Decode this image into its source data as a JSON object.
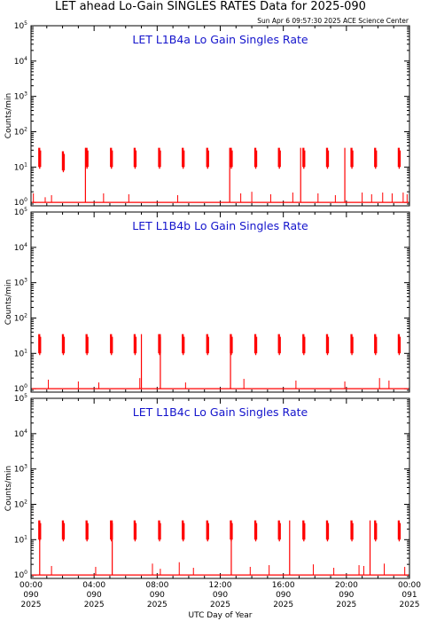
{
  "header": {
    "title": "LET ahead Lo-Gain SINGLES RATES Data for 2025-090",
    "timestamp": "Sun Apr  6 09:57:30 2025 ACE Science Center"
  },
  "chart_data": [
    {
      "type": "line",
      "title": "LET L1B4a Lo Gain Singles Rate",
      "ylabel": "Counts/min",
      "yscale": "log",
      "ylim": [
        0.8,
        100000
      ],
      "xlim": [
        0,
        24
      ],
      "line_color": "#ff0000",
      "spikes": [
        {
          "x": 0.55,
          "peak": 35
        },
        {
          "x": 2.05,
          "peak": 28
        },
        {
          "x": 3.55,
          "peak": 35
        },
        {
          "x": 5.1,
          "peak": 35
        },
        {
          "x": 6.6,
          "peak": 35
        },
        {
          "x": 8.15,
          "peak": 35
        },
        {
          "x": 9.65,
          "peak": 35
        },
        {
          "x": 11.2,
          "peak": 35
        },
        {
          "x": 12.7,
          "peak": 35
        },
        {
          "x": 14.25,
          "peak": 35
        },
        {
          "x": 15.75,
          "peak": 35
        },
        {
          "x": 17.3,
          "peak": 35
        },
        {
          "x": 18.8,
          "peak": 35
        },
        {
          "x": 20.35,
          "peak": 35
        },
        {
          "x": 21.85,
          "peak": 35
        },
        {
          "x": 23.35,
          "peak": 35
        }
      ],
      "drops": [
        3.45,
        12.6,
        17.1,
        19.9
      ],
      "noise": [
        {
          "x": 0.15,
          "y": 1.8
        },
        {
          "x": 0.9,
          "y": 1.4
        },
        {
          "x": 1.3,
          "y": 1.6
        },
        {
          "x": 4.6,
          "y": 1.8
        },
        {
          "x": 6.2,
          "y": 1.7
        },
        {
          "x": 9.3,
          "y": 1.6
        },
        {
          "x": 13.3,
          "y": 1.8
        },
        {
          "x": 14.0,
          "y": 2.0
        },
        {
          "x": 15.2,
          "y": 1.7
        },
        {
          "x": 16.6,
          "y": 1.9
        },
        {
          "x": 18.2,
          "y": 1.8
        },
        {
          "x": 19.3,
          "y": 1.6
        },
        {
          "x": 21.0,
          "y": 1.9
        },
        {
          "x": 21.6,
          "y": 1.7
        },
        {
          "x": 22.3,
          "y": 1.9
        },
        {
          "x": 22.9,
          "y": 1.8
        },
        {
          "x": 23.6,
          "y": 1.9
        },
        {
          "x": 23.85,
          "y": 1.7
        }
      ],
      "baseline": 1.0
    },
    {
      "type": "line",
      "title": "LET L1B4b Lo Gain Singles Rate",
      "ylabel": "Counts/min",
      "yscale": "log",
      "ylim": [
        0.8,
        100000
      ],
      "xlim": [
        0,
        24
      ],
      "line_color": "#ff0000",
      "spikes": [
        {
          "x": 0.55,
          "peak": 35
        },
        {
          "x": 2.05,
          "peak": 35
        },
        {
          "x": 3.55,
          "peak": 35
        },
        {
          "x": 5.1,
          "peak": 35
        },
        {
          "x": 6.6,
          "peak": 35
        },
        {
          "x": 8.15,
          "peak": 35
        },
        {
          "x": 9.65,
          "peak": 35
        },
        {
          "x": 11.2,
          "peak": 35
        },
        {
          "x": 12.7,
          "peak": 35
        },
        {
          "x": 14.25,
          "peak": 35
        },
        {
          "x": 15.75,
          "peak": 35
        },
        {
          "x": 17.3,
          "peak": 35
        },
        {
          "x": 18.8,
          "peak": 35
        },
        {
          "x": 20.35,
          "peak": 35
        },
        {
          "x": 21.85,
          "peak": 35
        },
        {
          "x": 23.35,
          "peak": 35
        }
      ],
      "drops": [
        7.0,
        8.2,
        12.65
      ],
      "noise": [
        {
          "x": 1.1,
          "y": 1.8
        },
        {
          "x": 3.0,
          "y": 1.6
        },
        {
          "x": 4.3,
          "y": 1.5
        },
        {
          "x": 6.9,
          "y": 2.0
        },
        {
          "x": 9.8,
          "y": 1.5
        },
        {
          "x": 13.5,
          "y": 1.9
        },
        {
          "x": 16.8,
          "y": 1.7
        },
        {
          "x": 19.9,
          "y": 1.6
        },
        {
          "x": 22.1,
          "y": 2.0
        },
        {
          "x": 22.7,
          "y": 1.7
        }
      ],
      "baseline": 1.0
    },
    {
      "type": "line",
      "title": "LET L1B4c Lo Gain Singles Rate",
      "ylabel": "Counts/min",
      "yscale": "log",
      "ylim": [
        0.8,
        100000
      ],
      "xlim": [
        0,
        24
      ],
      "line_color": "#ff0000",
      "spikes": [
        {
          "x": 0.55,
          "peak": 35
        },
        {
          "x": 2.05,
          "peak": 35
        },
        {
          "x": 3.55,
          "peak": 35
        },
        {
          "x": 5.1,
          "peak": 35
        },
        {
          "x": 6.6,
          "peak": 35
        },
        {
          "x": 8.15,
          "peak": 35
        },
        {
          "x": 9.65,
          "peak": 35
        },
        {
          "x": 11.2,
          "peak": 35
        },
        {
          "x": 12.7,
          "peak": 35
        },
        {
          "x": 14.25,
          "peak": 35
        },
        {
          "x": 15.75,
          "peak": 35
        },
        {
          "x": 17.3,
          "peak": 35
        },
        {
          "x": 18.8,
          "peak": 35
        },
        {
          "x": 20.35,
          "peak": 35
        },
        {
          "x": 21.85,
          "peak": 35
        },
        {
          "x": 23.35,
          "peak": 35
        }
      ],
      "drops": [
        0.55,
        5.15,
        12.7,
        16.4,
        21.5
      ],
      "noise": [
        {
          "x": 1.3,
          "y": 1.8
        },
        {
          "x": 4.1,
          "y": 1.7
        },
        {
          "x": 7.7,
          "y": 2.1
        },
        {
          "x": 8.2,
          "y": 1.5
        },
        {
          "x": 9.4,
          "y": 2.3
        },
        {
          "x": 10.3,
          "y": 1.6
        },
        {
          "x": 13.9,
          "y": 1.7
        },
        {
          "x": 15.1,
          "y": 1.9
        },
        {
          "x": 17.9,
          "y": 2.0
        },
        {
          "x": 19.2,
          "y": 1.6
        },
        {
          "x": 20.8,
          "y": 1.9
        },
        {
          "x": 21.1,
          "y": 1.8
        },
        {
          "x": 22.4,
          "y": 2.1
        },
        {
          "x": 23.7,
          "y": 1.7
        }
      ],
      "baseline": 1.0
    }
  ],
  "x_axis": {
    "label": "UTC Day of Year",
    "ticks": [
      {
        "x": 0,
        "time": "00:00",
        "doy": "090",
        "year": "2025"
      },
      {
        "x": 4,
        "time": "04:00",
        "doy": "090",
        "year": "2025"
      },
      {
        "x": 8,
        "time": "08:00",
        "doy": "090",
        "year": "2025"
      },
      {
        "x": 12,
        "time": "12:00",
        "doy": "090",
        "year": "2025"
      },
      {
        "x": 16,
        "time": "16:00",
        "doy": "090",
        "year": "2025"
      },
      {
        "x": 20,
        "time": "20:00",
        "doy": "090",
        "year": "2025"
      },
      {
        "x": 24,
        "time": "00:00",
        "doy": "091",
        "year": "2025"
      }
    ]
  },
  "y_axis": {
    "decades": [
      {
        "value": 1,
        "mantissa": "10",
        "exp": "0"
      },
      {
        "value": 10,
        "mantissa": "10",
        "exp": "1"
      },
      {
        "value": 100,
        "mantissa": "10",
        "exp": "2"
      },
      {
        "value": 1000,
        "mantissa": "10",
        "exp": "3"
      },
      {
        "value": 10000,
        "mantissa": "10",
        "exp": "4"
      },
      {
        "value": 100000,
        "mantissa": "10",
        "exp": "5"
      }
    ]
  }
}
